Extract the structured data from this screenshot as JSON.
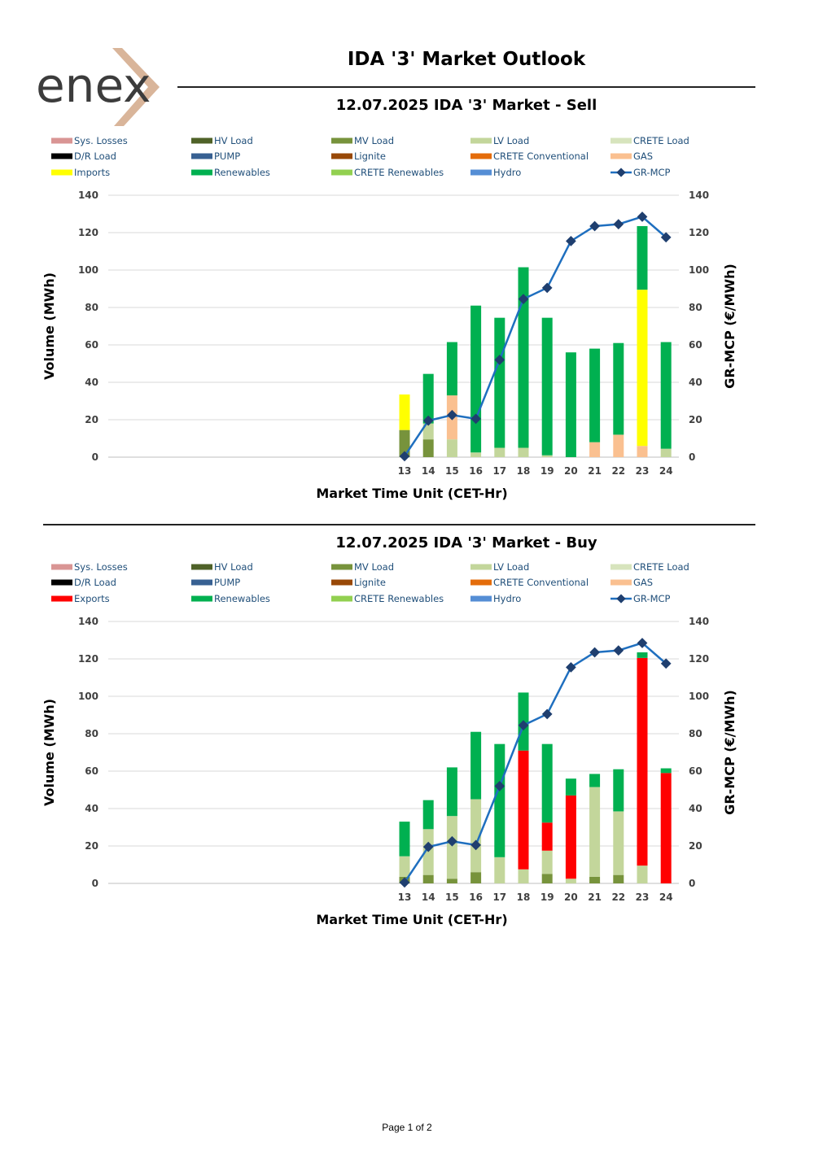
{
  "header": {
    "logo_text": "enex",
    "page_title": "IDA '3' Market Outlook"
  },
  "footer": {
    "page_label": "Page 1 of 2"
  },
  "colors": {
    "Sys. Losses": "#d99594",
    "HV Load": "#4f6228",
    "MV Load": "#77933c",
    "LV Load": "#c3d69b",
    "CRETE Load": "#d7e4bd",
    "D/R Load": "#000000",
    "PUMP": "#376092",
    "Lignite": "#984807",
    "CRETE Conventional": "#e46c0a",
    "GAS": "#fac090",
    "Imports": "#ffff00",
    "Exports": "#ff0000",
    "Renewables": "#00b050",
    "CRETE Renewables": "#92d050",
    "Hydro": "#558ed5",
    "GR-MCP": "#1f6fbf",
    "GR-MCP-marker": "#1f3f6f"
  },
  "chart_data": [
    {
      "type": "bar",
      "title": "12.07.2025  IDA '3' Market - Sell",
      "xlabel": "Market Time Unit (CET-Hr)",
      "ylabel": "Volume (MWh)",
      "y2label": "GR-MCP (€/MWh)",
      "ylim": [
        0,
        140
      ],
      "y2lim": [
        0,
        140
      ],
      "yticks": [
        0,
        20,
        40,
        60,
        80,
        100,
        120,
        140
      ],
      "grid": true,
      "legend_position": "top",
      "legend": [
        "Sys. Losses",
        "HV Load",
        "MV Load",
        "LV Load",
        "CRETE Load",
        "D/R Load",
        "PUMP",
        "Lignite",
        "CRETE Conventional",
        "GAS",
        "Imports",
        "Renewables",
        "CRETE Renewables",
        "Hydro",
        "GR-MCP"
      ],
      "categories": [
        "13",
        "14",
        "15",
        "16",
        "17",
        "18",
        "19",
        "20",
        "21",
        "22",
        "23",
        "24"
      ],
      "series": [
        {
          "name": "MV Load",
          "values": [
            14.5,
            9.5,
            0,
            0,
            0,
            0,
            0,
            0,
            0,
            0,
            0,
            0
          ]
        },
        {
          "name": "LV Load",
          "values": [
            0,
            8.5,
            9.5,
            2.5,
            5,
            5,
            1,
            0,
            0,
            0,
            0,
            4.5
          ]
        },
        {
          "name": "GAS",
          "values": [
            0,
            0,
            23.5,
            0,
            0,
            0,
            0,
            0,
            8,
            12,
            6,
            0
          ]
        },
        {
          "name": "Imports",
          "values": [
            19,
            0,
            0,
            0,
            0,
            0,
            0,
            0,
            0,
            0,
            83.5,
            0
          ]
        },
        {
          "name": "Renewables",
          "values": [
            0,
            26.5,
            28.5,
            78.5,
            69.5,
            96.5,
            73.5,
            56,
            50,
            49,
            34,
            57
          ]
        }
      ],
      "line": {
        "name": "GR-MCP",
        "values": [
          0.5,
          19.5,
          22.5,
          20.5,
          52,
          84.5,
          90.5,
          115.5,
          123.5,
          124.5,
          128.5,
          117.5
        ]
      }
    },
    {
      "type": "bar",
      "title": "12.07.2025  IDA '3' Market - Buy",
      "xlabel": "Market Time Unit (CET-Hr)",
      "ylabel": "Volume (MWh)",
      "y2label": "GR-MCP (€/MWh)",
      "ylim": [
        0,
        140
      ],
      "y2lim": [
        0,
        140
      ],
      "yticks": [
        0,
        20,
        40,
        60,
        80,
        100,
        120,
        140
      ],
      "grid": true,
      "legend_position": "top",
      "legend": [
        "Sys. Losses",
        "HV Load",
        "MV Load",
        "LV Load",
        "CRETE Load",
        "D/R Load",
        "PUMP",
        "Lignite",
        "CRETE Conventional",
        "GAS",
        "Exports",
        "Renewables",
        "CRETE Renewables",
        "Hydro",
        "GR-MCP"
      ],
      "categories": [
        "13",
        "14",
        "15",
        "16",
        "17",
        "18",
        "19",
        "20",
        "21",
        "22",
        "23",
        "24"
      ],
      "series": [
        {
          "name": "MV Load",
          "values": [
            3.5,
            4.5,
            2.5,
            6,
            0,
            0,
            5,
            0,
            3.5,
            4.5,
            0,
            0
          ]
        },
        {
          "name": "LV Load",
          "values": [
            11,
            24.5,
            33.5,
            39,
            14,
            7.5,
            12.5,
            2.5,
            48,
            34,
            9.5,
            0
          ]
        },
        {
          "name": "Exports",
          "values": [
            0,
            0,
            0,
            0,
            0,
            63.5,
            15,
            44.5,
            0,
            0,
            111,
            59
          ]
        },
        {
          "name": "Renewables",
          "values": [
            18.5,
            15.5,
            26,
            36,
            60.5,
            31,
            42,
            9,
            7,
            22.5,
            3,
            2.5
          ]
        }
      ],
      "line": {
        "name": "GR-MCP",
        "values": [
          0.5,
          19.5,
          22.5,
          20.5,
          52,
          84.5,
          90.5,
          115.5,
          123.5,
          124.5,
          128.5,
          117.5
        ]
      }
    }
  ]
}
